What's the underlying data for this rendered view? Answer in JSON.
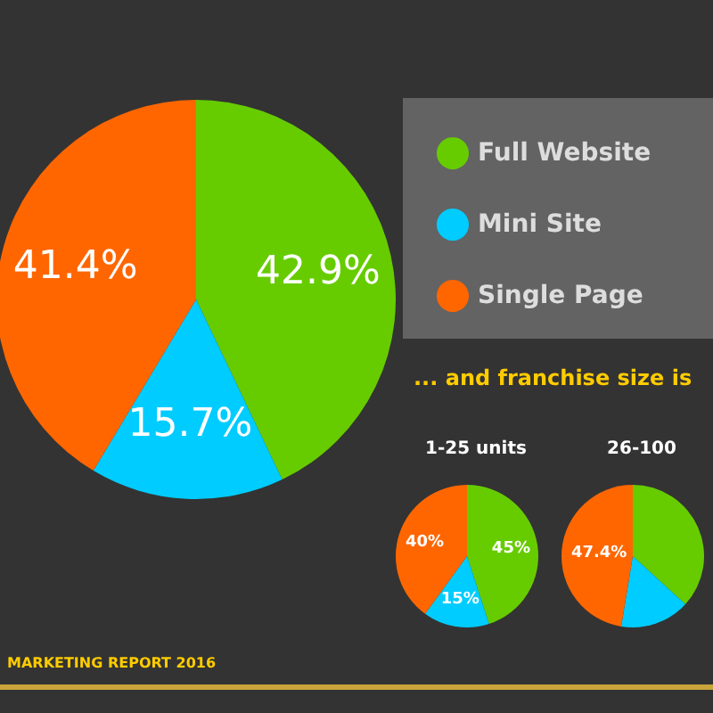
{
  "chart_data": [
    {
      "type": "pie",
      "categories": [
        "Full Website",
        "Mini Site",
        "Single Page"
      ],
      "values": [
        42.9,
        15.7,
        41.4
      ],
      "colors": [
        "#66cc00",
        "#00ccff",
        "#ff6600"
      ],
      "value_labels": [
        "42.9%",
        "15.7%",
        "41.4%"
      ],
      "legend": "right",
      "annotations": [
        "MARKETING REPORT 2016"
      ]
    },
    {
      "type": "pie",
      "title": "1-25 units",
      "categories": [
        null,
        null,
        null
      ],
      "values": [
        45,
        15,
        40
      ],
      "colors": [
        "#66cc00",
        "#00ccff",
        "#ff6600"
      ],
      "value_labels": [
        "45%",
        "15%",
        "40%"
      ],
      "annotations": [
        "... and franchise size is"
      ]
    },
    {
      "type": "pie",
      "title": "26-100",
      "categories": [
        null,
        null,
        null
      ],
      "values": [
        36.8,
        15.8,
        47.4
      ],
      "colors": [
        "#66cc00",
        "#00ccff",
        "#ff6600"
      ],
      "value_labels": [
        null,
        null,
        "47.4%"
      ]
    }
  ]
}
